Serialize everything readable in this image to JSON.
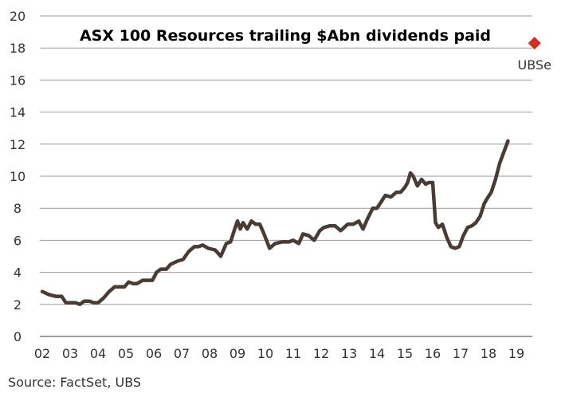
{
  "chart_data": {
    "type": "line",
    "title": "ASX 100 Resources trailing $Abn dividends paid",
    "xlabel": "",
    "ylabel": "",
    "ylim": [
      0,
      20
    ],
    "yticks": [
      0,
      2,
      4,
      6,
      8,
      10,
      12,
      14,
      16,
      18,
      20
    ],
    "xticks": [
      "02",
      "03",
      "04",
      "05",
      "06",
      "07",
      "08",
      "09",
      "10",
      "11",
      "12",
      "13",
      "14",
      "15",
      "16",
      "17",
      "18",
      "19"
    ],
    "grid": "horizontal",
    "series": [
      {
        "color": "#4a3c35",
        "x": [
          2002.0,
          2002.25,
          2002.5,
          2002.7,
          2002.85,
          2003.0,
          2003.2,
          2003.35,
          2003.5,
          2003.7,
          2003.85,
          2004.0,
          2004.2,
          2004.4,
          2004.6,
          2004.8,
          2004.95,
          2005.1,
          2005.25,
          2005.4,
          2005.6,
          2005.8,
          2005.95,
          2006.1,
          2006.25,
          2006.45,
          2006.6,
          2006.85,
          2007.05,
          2007.25,
          2007.45,
          2007.6,
          2007.75,
          2007.95,
          2008.2,
          2008.4,
          2008.6,
          2008.75,
          2008.9,
          2009.0,
          2009.1,
          2009.2,
          2009.35,
          2009.5,
          2009.65,
          2009.8,
          2009.95,
          2010.15,
          2010.35,
          2010.6,
          2010.85,
          2011.0,
          2011.2,
          2011.35,
          2011.55,
          2011.75,
          2011.95,
          2012.1,
          2012.3,
          2012.5,
          2012.7,
          2012.95,
          2013.15,
          2013.35,
          2013.5,
          2013.65,
          2013.85,
          2014.0,
          2014.15,
          2014.3,
          2014.5,
          2014.7,
          2014.85,
          2015.0,
          2015.1,
          2015.2,
          2015.3,
          2015.45,
          2015.6,
          2015.75,
          2015.85,
          2016.0,
          2016.1,
          2016.2,
          2016.35,
          2016.5,
          2016.65,
          2016.8,
          2016.95,
          2017.1,
          2017.25,
          2017.4,
          2017.55,
          2017.7,
          2017.85,
          2017.95,
          2018.1,
          2018.25,
          2018.4,
          2018.55,
          2018.7
        ],
        "y": [
          2.8,
          2.6,
          2.5,
          2.5,
          2.1,
          2.1,
          2.1,
          2.0,
          2.2,
          2.2,
          2.1,
          2.1,
          2.4,
          2.8,
          3.1,
          3.1,
          3.1,
          3.4,
          3.3,
          3.3,
          3.5,
          3.5,
          3.5,
          4.0,
          4.2,
          4.2,
          4.5,
          4.7,
          4.8,
          5.3,
          5.6,
          5.6,
          5.7,
          5.5,
          5.4,
          5.0,
          5.8,
          5.9,
          6.7,
          7.2,
          6.7,
          7.1,
          6.7,
          7.2,
          7.0,
          7.0,
          6.4,
          5.5,
          5.8,
          5.9,
          5.9,
          6.0,
          5.8,
          6.4,
          6.3,
          6.0,
          6.6,
          6.8,
          6.9,
          6.9,
          6.6,
          7.0,
          7.0,
          7.2,
          6.7,
          7.3,
          8.0,
          8.0,
          8.4,
          8.8,
          8.7,
          9.0,
          9.0,
          9.3,
          9.6,
          10.2,
          10.0,
          9.4,
          9.8,
          9.5,
          9.6,
          9.6,
          7.1,
          6.8,
          7.0,
          6.2,
          5.6,
          5.5,
          5.6,
          6.3,
          6.8,
          6.9,
          7.1,
          7.5,
          8.3,
          8.6,
          9.0,
          9.8,
          10.8,
          11.5,
          12.2
        ]
      }
    ],
    "estimate": {
      "label": "UBSe",
      "x": 2019.65,
      "y": 18.3,
      "color": "#d22d1d"
    },
    "source": "Source: FactSet, UBS"
  }
}
